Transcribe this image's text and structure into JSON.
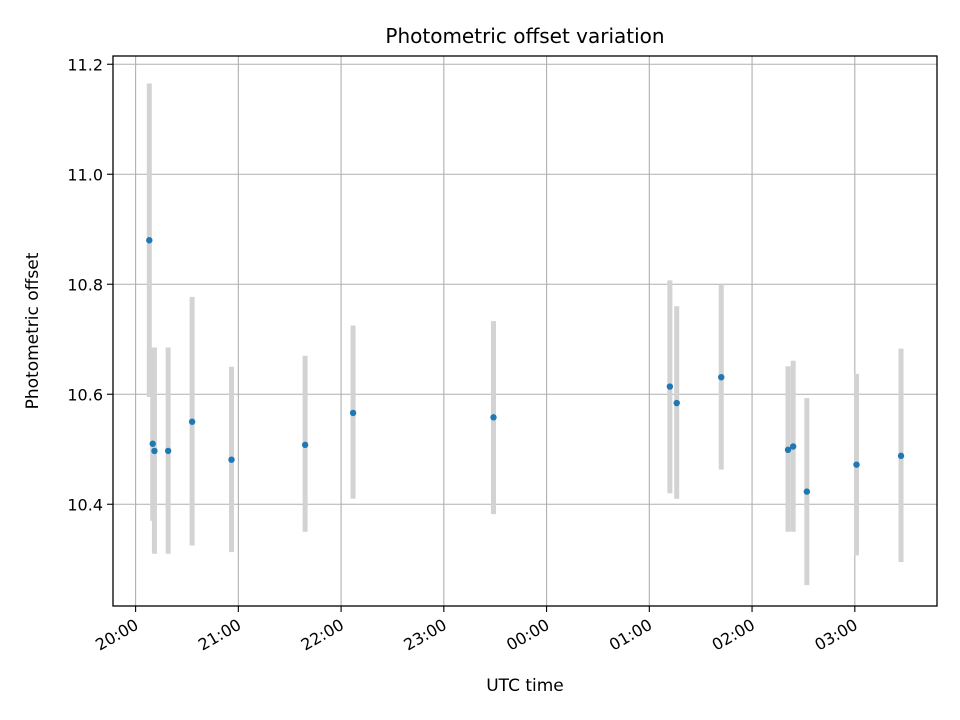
{
  "chart_data": {
    "type": "scatter",
    "title": "Photometric offset variation",
    "xlabel": "UTC time",
    "ylabel": "Photometric offset",
    "x_axis_kind": "time",
    "x_ticks": [
      "20:00",
      "21:00",
      "22:00",
      "23:00",
      "00:00",
      "01:00",
      "02:00",
      "03:00"
    ],
    "x_tick_hours": [
      0,
      1,
      2,
      3,
      4,
      5,
      6,
      7
    ],
    "xlim_hours": [
      -0.22,
      7.8
    ],
    "ylim": [
      10.215,
      11.215
    ],
    "y_ticks": [
      10.4,
      10.6,
      10.8,
      11.0,
      11.2
    ],
    "y_tick_labels": [
      "10.4",
      "10.6",
      "10.8",
      "11.0",
      "11.2"
    ],
    "grid": true,
    "marker_color": "#1f77b4",
    "errorbar_color": "#d3d3d3",
    "points": [
      {
        "time": "20:08",
        "y": 10.88,
        "low": 10.595,
        "high": 11.165
      },
      {
        "time": "20:10",
        "y": 10.51,
        "low": 10.37,
        "high": 10.685
      },
      {
        "time": "20:11",
        "y": 10.497,
        "low": 10.31,
        "high": 10.685
      },
      {
        "time": "20:19",
        "y": 10.497,
        "low": 10.31,
        "high": 10.685
      },
      {
        "time": "20:33",
        "y": 10.55,
        "low": 10.325,
        "high": 10.777
      },
      {
        "time": "20:56",
        "y": 10.481,
        "low": 10.313,
        "high": 10.65
      },
      {
        "time": "21:39",
        "y": 10.508,
        "low": 10.35,
        "high": 10.67
      },
      {
        "time": "22:07",
        "y": 10.566,
        "low": 10.41,
        "high": 10.725
      },
      {
        "time": "23:29",
        "y": 10.558,
        "low": 10.382,
        "high": 10.733
      },
      {
        "time": "01:12",
        "y": 10.614,
        "low": 10.42,
        "high": 10.807
      },
      {
        "time": "01:16",
        "y": 10.584,
        "low": 10.41,
        "high": 10.76
      },
      {
        "time": "01:42",
        "y": 10.631,
        "low": 10.463,
        "high": 10.8
      },
      {
        "time": "02:21",
        "y": 10.499,
        "low": 10.35,
        "high": 10.651
      },
      {
        "time": "02:24",
        "y": 10.505,
        "low": 10.35,
        "high": 10.661
      },
      {
        "time": "02:32",
        "y": 10.423,
        "low": 10.253,
        "high": 10.593
      },
      {
        "time": "03:01",
        "y": 10.472,
        "low": 10.307,
        "high": 10.637
      },
      {
        "time": "03:27",
        "y": 10.488,
        "low": 10.295,
        "high": 10.683
      }
    ]
  }
}
